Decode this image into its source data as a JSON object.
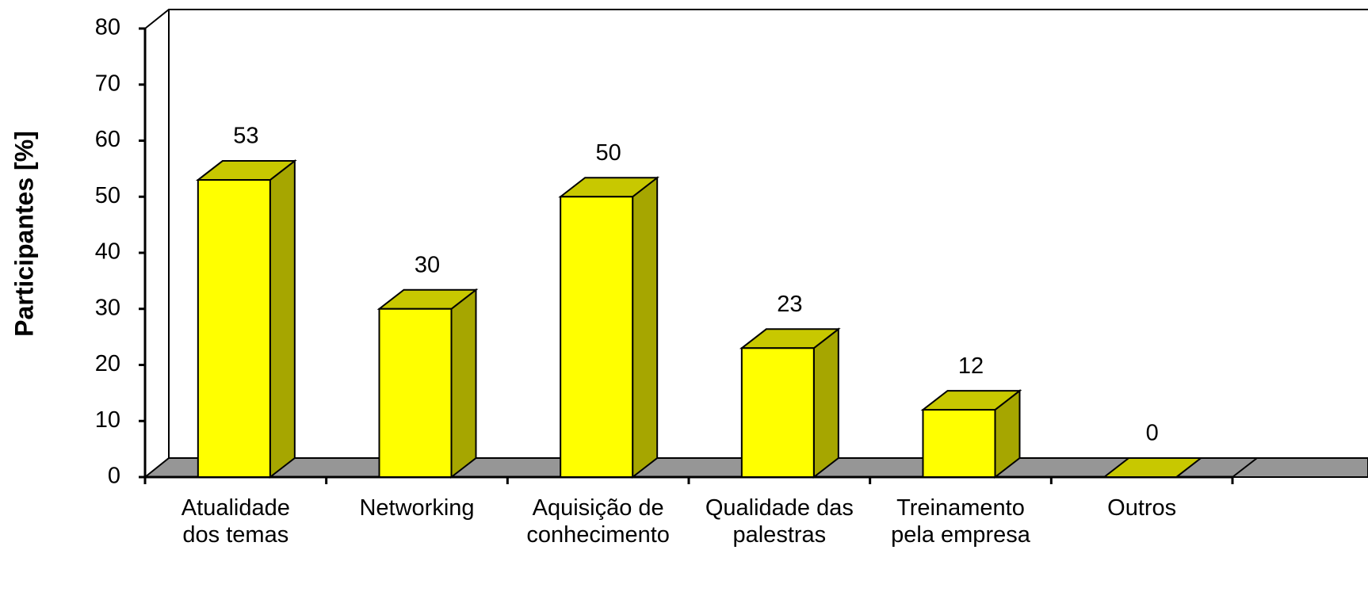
{
  "chart_data": {
    "type": "bar3d",
    "y_label": "Participantes [%]",
    "categories": [
      "Atualidade\ndos temas",
      "Networking",
      "Aquisição de\nconhecimento",
      "Qualidade das\npalestras",
      "Treinamento\npela empresa",
      "Outros"
    ],
    "values": [
      53,
      30,
      50,
      23,
      12,
      0
    ],
    "color": "#ffff00",
    "ylim": [
      0,
      80
    ],
    "yticks": [
      0,
      10,
      20,
      30,
      40,
      50,
      60,
      70,
      80
    ],
    "grid": false
  }
}
